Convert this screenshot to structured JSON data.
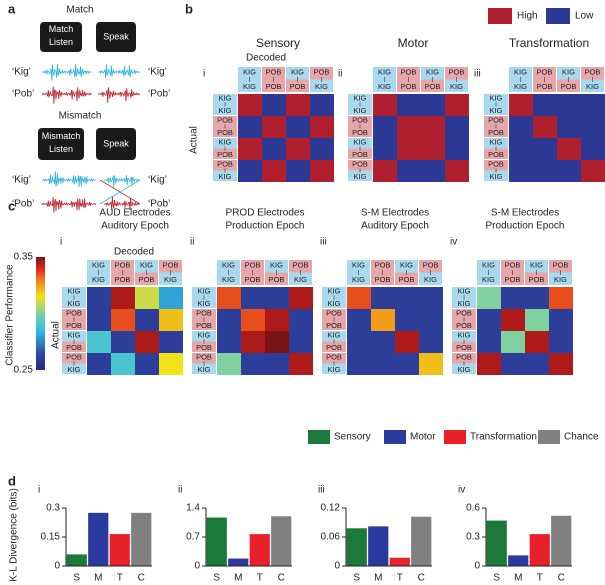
{
  "panel_a": {
    "label": "a",
    "match": {
      "title": "Match",
      "listen": "Match Listen",
      "speak": "Speak",
      "left": [
        "‘Kig’",
        "‘Pob’"
      ],
      "right": [
        "‘Kig’",
        "‘Pob’"
      ]
    },
    "mismatch": {
      "title": "Mismatch",
      "listen": "Mismatch Listen",
      "speak": "Speak",
      "left": [
        "‘Kig’",
        "‘Pob’"
      ],
      "right": [
        "‘Kig’",
        "‘Pob’"
      ]
    }
  },
  "conditions": [
    {
      "top": "KIG",
      "bottom": "KIG"
    },
    {
      "top": "POB",
      "bottom": "POB"
    },
    {
      "top": "KIG",
      "bottom": "POB"
    },
    {
      "top": "POB",
      "bottom": "KIG"
    }
  ],
  "word_colors": {
    "KIG": "#a9d9ee",
    "POB": "#e7a7aa"
  },
  "panel_b": {
    "label": "b",
    "decoded": "Decoded",
    "actual": "Actual",
    "legend": [
      {
        "name": "High",
        "color": "#b01f2e"
      },
      {
        "name": "Low",
        "color": "#2b3995"
      }
    ],
    "subpanels": [
      {
        "numeral": "i",
        "title": "Sensory",
        "values": [
          [
            "High",
            "Low",
            "High",
            "Low"
          ],
          [
            "Low",
            "High",
            "Low",
            "High"
          ],
          [
            "High",
            "Low",
            "High",
            "Low"
          ],
          [
            "Low",
            "High",
            "Low",
            "High"
          ]
        ]
      },
      {
        "numeral": "ii",
        "title": "Motor",
        "values": [
          [
            "High",
            "Low",
            "Low",
            "High"
          ],
          [
            "Low",
            "High",
            "High",
            "Low"
          ],
          [
            "Low",
            "High",
            "High",
            "Low"
          ],
          [
            "High",
            "Low",
            "Low",
            "High"
          ]
        ]
      },
      {
        "numeral": "iii",
        "title": "Transformation",
        "values": [
          [
            "High",
            "Low",
            "Low",
            "Low"
          ],
          [
            "Low",
            "High",
            "Low",
            "Low"
          ],
          [
            "Low",
            "Low",
            "High",
            "Low"
          ],
          [
            "Low",
            "Low",
            "Low",
            "High"
          ]
        ]
      }
    ]
  },
  "panel_c": {
    "label": "c",
    "decoded": "Decoded",
    "actual": "Actual",
    "colorbar": {
      "label": "Classifier Performance",
      "lim": [
        0.25,
        0.35
      ],
      "ticks": [
        0.25,
        0.35
      ]
    }
  },
  "panel_d": {
    "label": "d",
    "ylabel": "K-L Divergence (bits)",
    "legend": [
      {
        "name": "Sensory",
        "color": "#1b7a3a"
      },
      {
        "name": "Motor",
        "color": "#2b3a9e"
      },
      {
        "name": "Transformation",
        "color": "#e8202a"
      },
      {
        "name": "Chance",
        "color": "#808080"
      }
    ]
  },
  "chart_data": [
    {
      "type": "heatmap",
      "numeral": "i",
      "title": [
        "AUD Electrodes",
        "Auditory Epoch"
      ],
      "values": [
        [
          0.26,
          0.345,
          0.31,
          0.28
        ],
        [
          0.26,
          0.335,
          0.26,
          0.32
        ],
        [
          0.29,
          0.26,
          0.345,
          0.26
        ],
        [
          0.26,
          0.29,
          0.26,
          0.315
        ]
      ]
    },
    {
      "type": "heatmap",
      "numeral": "ii",
      "title": [
        "PROD Electrodes",
        "Production Epoch"
      ],
      "values": [
        [
          0.335,
          0.26,
          0.26,
          0.345
        ],
        [
          0.26,
          0.335,
          0.345,
          0.26
        ],
        [
          0.26,
          0.345,
          0.35,
          0.26
        ],
        [
          0.3,
          0.26,
          0.26,
          0.345
        ]
      ]
    },
    {
      "type": "heatmap",
      "numeral": "iii",
      "title": [
        "S-M Electrodes",
        "Auditory Epoch"
      ],
      "values": [
        [
          0.335,
          0.26,
          0.26,
          0.26
        ],
        [
          0.26,
          0.325,
          0.26,
          0.26
        ],
        [
          0.26,
          0.26,
          0.345,
          0.26
        ],
        [
          0.26,
          0.26,
          0.26,
          0.32
        ]
      ]
    },
    {
      "type": "heatmap",
      "numeral": "iv",
      "title": [
        "S-M Electrodes",
        "Production Epoch"
      ],
      "values": [
        [
          0.3,
          0.26,
          0.26,
          0.335
        ],
        [
          0.26,
          0.345,
          0.3,
          0.26
        ],
        [
          0.26,
          0.3,
          0.345,
          0.26
        ],
        [
          0.345,
          0.26,
          0.26,
          0.345
        ]
      ]
    },
    {
      "type": "bar",
      "numeral": "i",
      "categories": [
        "S",
        "M",
        "T",
        "C"
      ],
      "values": [
        0.06,
        0.275,
        0.165,
        0.275
      ],
      "ylim": [
        0,
        0.3
      ],
      "yticks": [
        0,
        0.15,
        0.3
      ]
    },
    {
      "type": "bar",
      "numeral": "ii",
      "categories": [
        "S",
        "M",
        "T",
        "C"
      ],
      "values": [
        1.17,
        0.18,
        0.77,
        1.2
      ],
      "ylim": [
        0,
        1.4
      ],
      "yticks": [
        0,
        0.7,
        1.4
      ]
    },
    {
      "type": "bar",
      "numeral": "iii",
      "categories": [
        "S",
        "M",
        "T",
        "C"
      ],
      "values": [
        0.078,
        0.082,
        0.017,
        0.102
      ],
      "ylim": [
        0,
        0.12
      ],
      "yticks": [
        0,
        0.06,
        0.12
      ]
    },
    {
      "type": "bar",
      "numeral": "iv",
      "categories": [
        "S",
        "M",
        "T",
        "C"
      ],
      "values": [
        0.47,
        0.11,
        0.33,
        0.52
      ],
      "ylim": [
        0,
        0.6
      ],
      "yticks": [
        0,
        0.3,
        0.6
      ]
    }
  ]
}
